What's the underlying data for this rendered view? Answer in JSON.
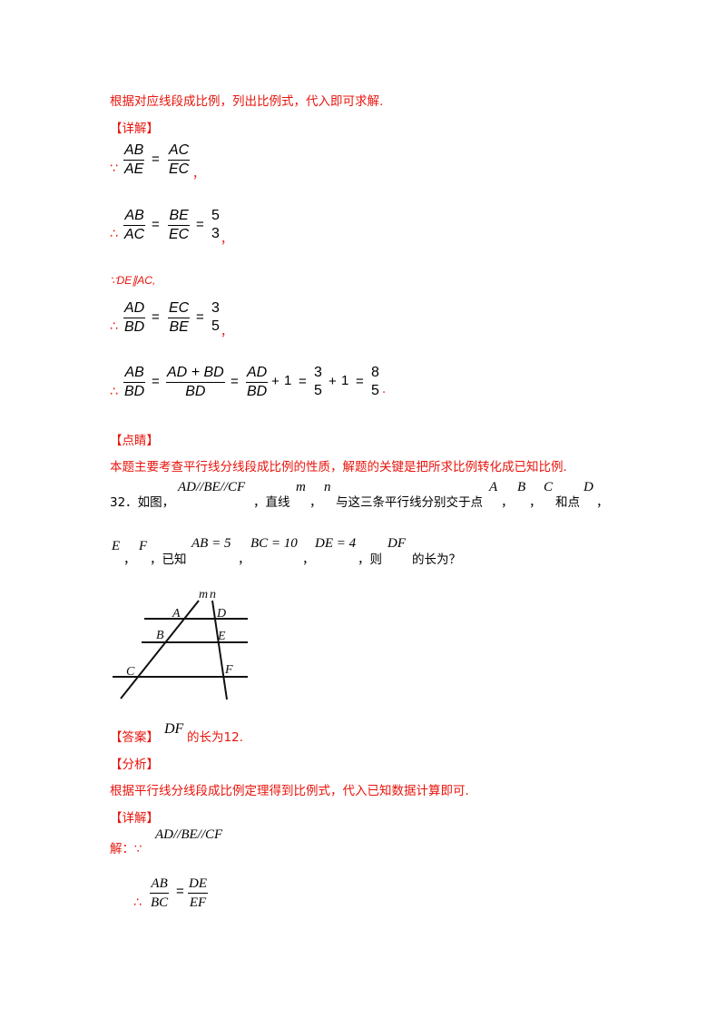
{
  "intro_line": "根据对应线段成比例，列出比例式，代入即可求解.",
  "sections": {
    "detail": "【详解】",
    "comment": "【点睛】",
    "answer": "【答案】",
    "analysis": "【分析】",
    "detail2": "【详解】"
  },
  "math": {
    "because": "∵",
    "therefore": "∴",
    "AB": "AB",
    "AE": "AE",
    "AC": "AC",
    "EC": "EC",
    "BE": "BE",
    "AD": "AD",
    "BD": "BD",
    "ADpBD": "AD + BD",
    "five": "5",
    "three": "3",
    "eight": "8",
    "one": "1",
    "eq": "=",
    "plus": "+",
    "comma": "，",
    "dot": ".",
    "parallel_line": "∵DE∥AC,"
  },
  "comment_text": "本题主要考查平行线分线段成比例的性质，解题的关键是把所求比例转化成已知比例.",
  "problem": {
    "number": "32．如图，",
    "parallels": "AD//BE//CF",
    "text1": "，直线",
    "m": "m",
    "sep": "，",
    "n": "n",
    "text2": "与这三条平行线分别交于点",
    "A": "A",
    "B": "B",
    "C": "C",
    "and_point": "和点",
    "D": "D",
    "E": "E",
    "F": "F",
    "known": "，已知",
    "c1": "AB = 5",
    "c2": "BC = 10",
    "c3": "DE = 4",
    "then": "，则",
    "DF": "DF",
    "ask": "的长为？"
  },
  "figure": {
    "labels": {
      "m": "m",
      "n": "n",
      "A": "A",
      "D": "D",
      "B": "B",
      "E": "E",
      "C": "C",
      "F": "F"
    }
  },
  "answer_math": "DF",
  "answer_text": "的长为12.",
  "analysis_text": "根据平行线分线段成比例定理得到比例式，代入已知数据计算即可.",
  "solution": {
    "prefix": "解：∵",
    "parallels": "AD//BE//CF",
    "therefore": "∴",
    "AB": "AB",
    "BC": "BC",
    "DE": "DE",
    "EF": "EF",
    "eq": "="
  }
}
